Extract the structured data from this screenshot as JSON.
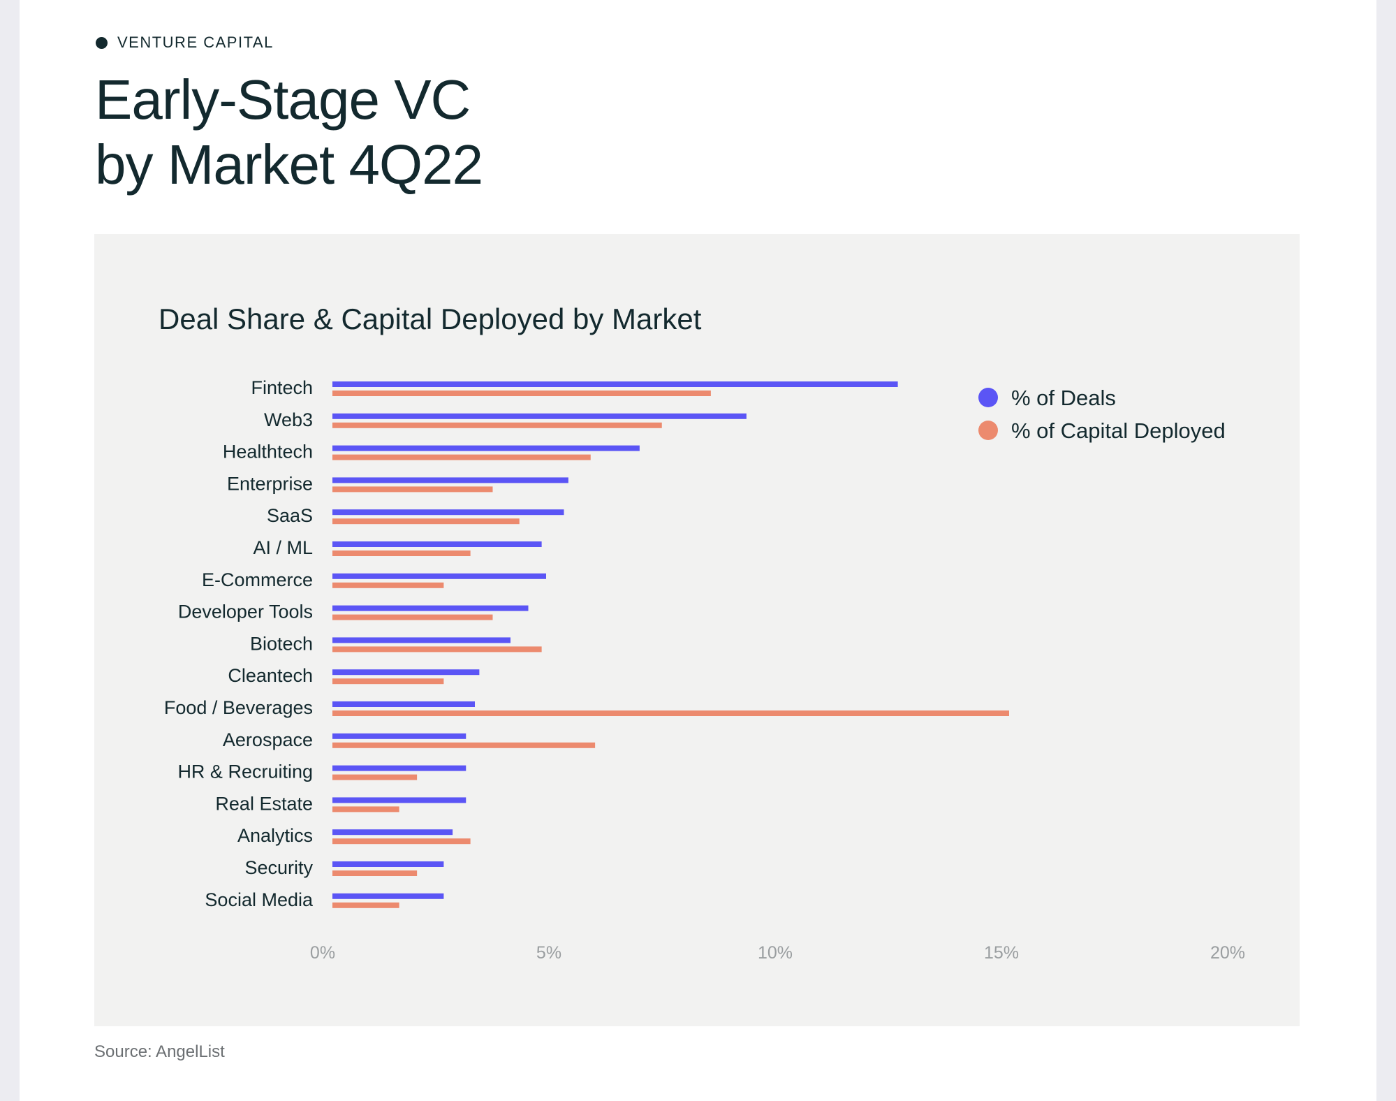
{
  "header": {
    "tag": "VENTURE CAPITAL",
    "title_line1": "Early-Stage VC",
    "title_line2": "by Market 4Q22"
  },
  "source": "Source: AngelList",
  "colors": {
    "deals": "#5b55f5",
    "capital": "#ec8a6e",
    "text": "#13292e",
    "panel": "#f2f2f1"
  },
  "chart_data": {
    "type": "bar",
    "orientation": "horizontal",
    "title": "Deal Share & Capital Deployed by Market",
    "categories": [
      "Fintech",
      "Web3",
      "Healthtech",
      "Enterprise",
      "SaaS",
      "AI / ML",
      "E-Commerce",
      "Developer Tools",
      "Biotech",
      "Cleantech",
      "Food / Beverages",
      "Aerospace",
      "HR & Recruiting",
      "Real Estate",
      "Analytics",
      "Security",
      "Social Media"
    ],
    "series": [
      {
        "name": "% of Deals",
        "color": "#5b55f5",
        "values": [
          12.7,
          9.3,
          6.9,
          5.3,
          5.2,
          4.7,
          4.8,
          4.4,
          4.0,
          3.3,
          3.2,
          3.0,
          3.0,
          3.0,
          2.7,
          2.5,
          2.5
        ]
      },
      {
        "name": "% of Capital Deployed",
        "color": "#ec8a6e",
        "values": [
          8.5,
          7.4,
          5.8,
          3.6,
          4.2,
          3.1,
          2.5,
          3.6,
          4.7,
          2.5,
          15.2,
          5.9,
          1.9,
          1.5,
          3.1,
          1.9,
          1.5
        ]
      }
    ],
    "xlim": [
      0,
      20
    ],
    "xticks": [
      "0%",
      "5%",
      "10%",
      "15%",
      "20%"
    ],
    "grid": false,
    "legend": "top-right"
  }
}
